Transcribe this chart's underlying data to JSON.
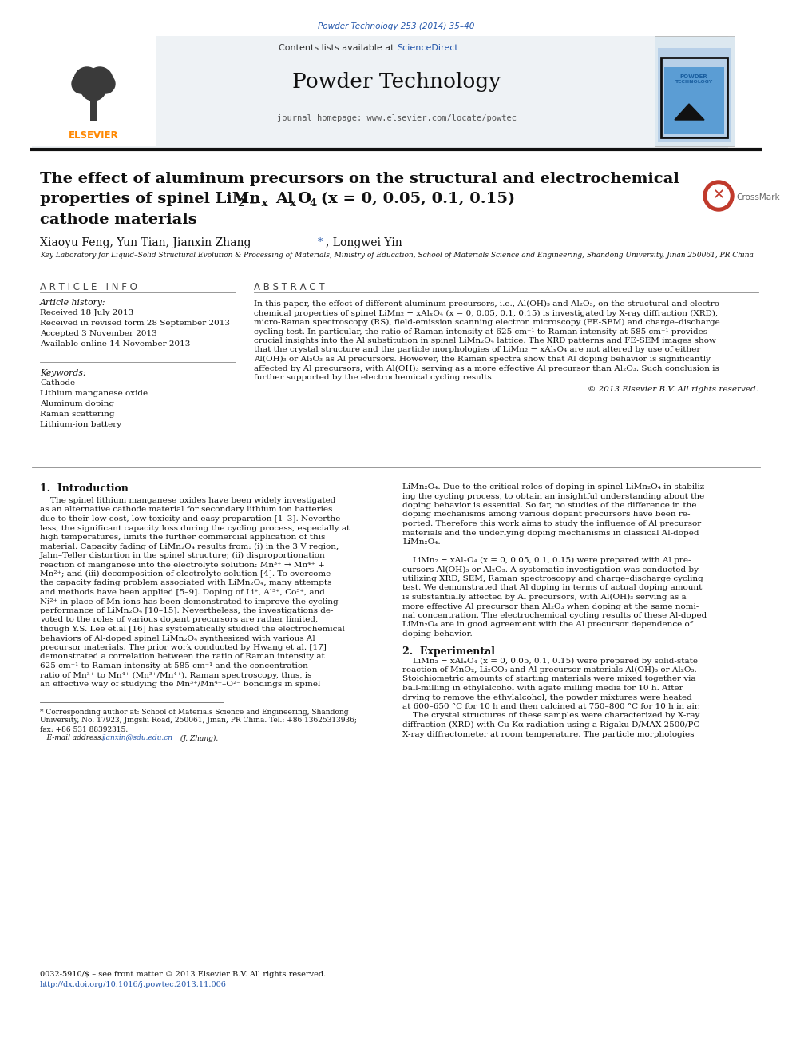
{
  "journal_ref": "Powder Technology 253 (2014) 35–40",
  "journal_ref_color": "#2255aa",
  "contents_text": "Contents lists available at ",
  "sciencedirect_text": "ScienceDirect",
  "sciencedirect_color": "#2255aa",
  "journal_name": "Powder Technology",
  "journal_homepage": "journal homepage: www.elsevier.com/locate/powtec",
  "elsevier_color": "#ff8800",
  "article_title_line1": "The effect of aluminum precursors on the structural and electrochemical",
  "article_title_line3": "cathode materials",
  "authors_pre": "Xiaoyu Feng, Yun Tian, Jianxin Zhang ",
  "authors_star": "⁎",
  "authors_post": ", Longwei Yin",
  "affiliation": "Key Laboratory for Liquid–Solid Structural Evolution & Processing of Materials, Ministry of Education, School of Materials Science and Engineering, Shandong University, Jinan 250061, PR China",
  "article_info_header": "A R T I C L E   I N F O",
  "article_history_label": "Article history:",
  "received": "Received 18 July 2013",
  "received_revised": "Received in revised form 28 September 2013",
  "accepted": "Accepted 3 November 2013",
  "available": "Available online 14 November 2013",
  "keywords_label": "Keywords:",
  "keywords": [
    "Cathode",
    "Lithium manganese oxide",
    "Aluminum doping",
    "Raman scattering",
    "Lithium-ion battery"
  ],
  "abstract_header": "A B S T R A C T",
  "abstract_lines": [
    "In this paper, the effect of different aluminum precursors, i.e., Al(OH)₃ and Al₂O₃, on the structural and electro-",
    "chemical properties of spinel LiMn₂ − xAlₓO₄ (x = 0, 0.05, 0.1, 0.15) is investigated by X-ray diffraction (XRD),",
    "micro-Raman spectroscopy (RS), field-emission scanning electron microscopy (FE-SEM) and charge–discharge",
    "cycling test. In particular, the ratio of Raman intensity at 625 cm⁻¹ to Raman intensity at 585 cm⁻¹ provides",
    "crucial insights into the Al substitution in spinel LiMn₂O₄ lattice. The XRD patterns and FE-SEM images show",
    "that the crystal structure and the particle morphologies of LiMn₂ − xAlₓO₄ are not altered by use of either",
    "Al(OH)₃ or Al₂O₃ as Al precursors. However, the Raman spectra show that Al doping behavior is significantly",
    "affected by Al precursors, with Al(OH)₃ serving as a more effective Al precursor than Al₂O₃. Such conclusion is",
    "further supported by the electrochemical cycling results."
  ],
  "copyright_text": "© 2013 Elsevier B.V. All rights reserved.",
  "intro_header": "1.  Introduction",
  "intro_lines_left": [
    "    The spinel lithium manganese oxides have been widely investigated",
    "as an alternative cathode material for secondary lithium ion batteries",
    "due to their low cost, low toxicity and easy preparation [1–3]. Neverthe-",
    "less, the significant capacity loss during the cycling process, especially at",
    "high temperatures, limits the further commercial application of this",
    "material. Capacity fading of LiMn₂O₄ results from: (i) in the 3 V region,",
    "Jahn–Teller distortion in the spinel structure; (ii) disproportionation",
    "reaction of manganese into the electrolyte solution: Mn³⁺ → Mn⁴⁺ +",
    "Mn²⁺; and (iii) decomposition of electrolyte solution [4]. To overcome",
    "the capacity fading problem associated with LiMn₂O₄, many attempts",
    "and methods have been applied [5–9]. Doping of Li⁺, Al³⁺, Co³⁺, and",
    "Ni²⁺ in place of Mn-ions has been demonstrated to improve the cycling",
    "performance of LiMn₂O₄ [10–15]. Nevertheless, the investigations de-",
    "voted to the roles of various dopant precursors are rather limited,",
    "though Y.S. Lee et.al [16] has systematically studied the electrochemical",
    "behaviors of Al-doped spinel LiMn₂O₄ synthesized with various Al",
    "precursor materials. The prior work conducted by Hwang et al. [17]",
    "demonstrated a correlation between the ratio of Raman intensity at",
    "625 cm⁻¹ to Raman intensity at 585 cm⁻¹ and the concentration",
    "ratio of Mn³⁺ to Mn⁴⁺ (Mn³⁺/Mn⁴⁺). Raman spectroscopy, thus, is",
    "an effective way of studying the Mn³⁺/Mn⁴⁺–O²⁻ bondings in spinel"
  ],
  "intro_lines_right": [
    "LiMn₂O₄. Due to the critical roles of doping in spinel LiMn₂O₄ in stabiliz-",
    "ing the cycling process, to obtain an insightful understanding about the",
    "doping behavior is essential. So far, no studies of the difference in the",
    "doping mechanisms among various dopant precursors have been re-",
    "ported. Therefore this work aims to study the influence of Al precursor",
    "materials and the underlying doping mechanisms in classical Al-doped",
    "LiMn₂O₄.",
    "",
    "    LiMn₂ − xAlₓO₄ (x = 0, 0.05, 0.1, 0.15) were prepared with Al pre-",
    "cursors Al(OH)₃ or Al₂O₃. A systematic investigation was conducted by",
    "utilizing XRD, SEM, Raman spectroscopy and charge–discharge cycling",
    "test. We demonstrated that Al doping in terms of actual doping amount",
    "is substantially affected by Al precursors, with Al(OH)₃ serving as a",
    "more effective Al precursor than Al₂O₃ when doping at the same nomi-",
    "nal concentration. The electrochemical cycling results of these Al-doped",
    "LiMn₂O₄ are in good agreement with the Al precursor dependence of",
    "doping behavior."
  ],
  "exp_header": "2.  Experimental",
  "exp_lines": [
    "    LiMn₂ − xAlₓO₄ (x = 0, 0.05, 0.1, 0.15) were prepared by solid-state",
    "reaction of MnO₂, Li₂CO₃ and Al precursor materials Al(OH)₃ or Al₂O₃.",
    "Stoichiometric amounts of starting materials were mixed together via",
    "ball-milling in ethylalcohol with agate milling media for 10 h. After",
    "drying to remove the ethylalcohol, the powder mixtures were heated",
    "at 600–650 °C for 10 h and then calcined at 750–800 °C for 10 h in air.",
    "    The crystal structures of these samples were characterized by X-ray",
    "diffraction (XRD) with Cu Kα radiation using a Rigaku D/MAX-2500/PC",
    "X-ray diffractometer at room temperature. The particle morphologies"
  ],
  "footnote_line1": "* Corresponding author at: School of Materials Science and Engineering, Shandong",
  "footnote_line2": "University, No. 17923, Jingshi Road, 250061, Jinan, PR China. Tel.: +86 13625313936;",
  "footnote_line3": "fax: +86 531 88392315.",
  "footnote_email_label": "   E-mail address: ",
  "footnote_email": "jianxin@sdu.edu.cn",
  "footnote_email_color": "#2255aa",
  "footnote_email_suffix": " (J. Zhang).",
  "footer_issn": "0032-5910/$ – see front matter © 2013 Elsevier B.V. All rights reserved.",
  "footer_doi": "http://dx.doi.org/10.1016/j.powtec.2013.11.006",
  "footer_doi_color": "#2255aa",
  "bg_color": "#ffffff",
  "text_color": "#000000"
}
